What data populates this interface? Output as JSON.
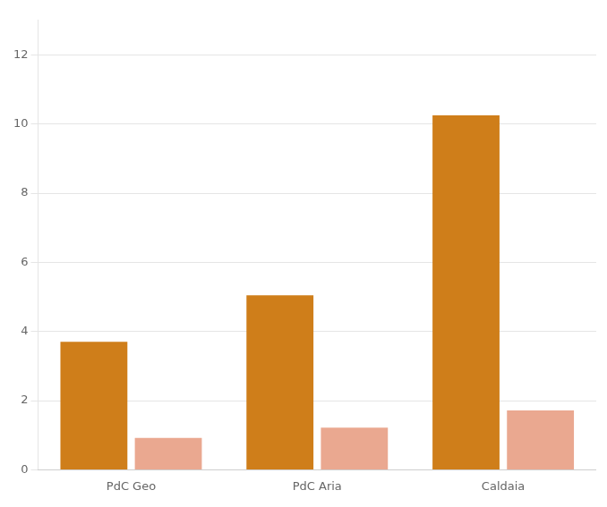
{
  "chart_data": {
    "type": "bar",
    "categories": [
      "PdC Geo",
      "PdC Aria",
      "Caldaia"
    ],
    "series": [
      {
        "color": "#CF7E1A",
        "values": [
          3.7,
          5.05,
          10.25
        ]
      },
      {
        "color": "#EAA890",
        "values": [
          0.92,
          1.22,
          1.72
        ]
      }
    ],
    "ylim": [
      0,
      13
    ],
    "yticks": [
      0,
      2,
      4,
      6,
      8,
      10,
      12
    ],
    "grid": true
  }
}
